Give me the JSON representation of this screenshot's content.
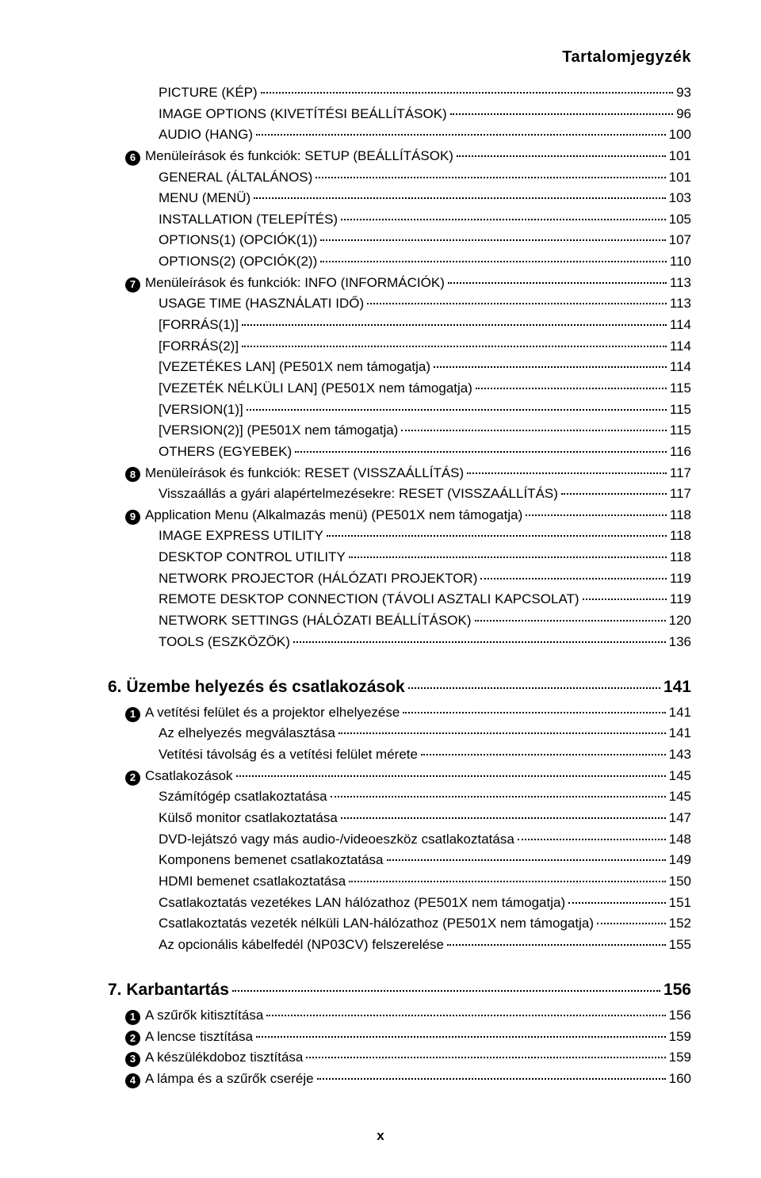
{
  "header": {
    "title": "Tartalomjegyzék"
  },
  "footer": {
    "page": "x"
  },
  "lines": [
    {
      "indent": 2,
      "label": "PICTURE (KÉP)",
      "page": "93"
    },
    {
      "indent": 2,
      "label": "IMAGE OPTIONS (KIVETÍTÉSI BEÁLLÍTÁSOK)",
      "page": "96"
    },
    {
      "indent": 2,
      "label": "AUDIO (HANG)",
      "page": "100"
    },
    {
      "indent": 1,
      "bullet": "6",
      "label": "Menüleírások és funkciók: SETUP (BEÁLLÍTÁSOK)",
      "page": "101"
    },
    {
      "indent": 2,
      "label": "GENERAL (ÁLTALÁNOS)",
      "page": "101"
    },
    {
      "indent": 2,
      "label": "MENU (MENÜ)",
      "page": "103"
    },
    {
      "indent": 2,
      "label": "INSTALLATION (TELEPÍTÉS)",
      "page": "105"
    },
    {
      "indent": 2,
      "label": "OPTIONS(1) (OPCIÓK(1))",
      "page": "107"
    },
    {
      "indent": 2,
      "label": "OPTIONS(2) (OPCIÓK(2))",
      "page": "110"
    },
    {
      "indent": 1,
      "bullet": "7",
      "label": "Menüleírások és funkciók: INFO (INFORMÁCIÓK)",
      "page": "113"
    },
    {
      "indent": 2,
      "label": "USAGE TIME (HASZNÁLATI IDŐ)",
      "page": "113"
    },
    {
      "indent": 2,
      "label": "[FORRÁS(1)]",
      "page": "114"
    },
    {
      "indent": 2,
      "label": "[FORRÁS(2)]",
      "page": "114"
    },
    {
      "indent": 2,
      "label": "[VEZETÉKES LAN] (PE501X nem támogatja)",
      "page": "114"
    },
    {
      "indent": 2,
      "label": "[VEZETÉK NÉLKÜLI LAN] (PE501X nem támogatja)",
      "page": "115"
    },
    {
      "indent": 2,
      "label": "[VERSION(1)]",
      "page": "115"
    },
    {
      "indent": 2,
      "label": "[VERSION(2)] (PE501X nem támogatja)",
      "page": "115"
    },
    {
      "indent": 2,
      "label": "OTHERS (EGYEBEK)",
      "page": "116"
    },
    {
      "indent": 1,
      "bullet": "8",
      "label": "Menüleírások és funkciók: RESET (VISSZAÁLLÍTÁS)",
      "page": "117"
    },
    {
      "indent": 2,
      "label": "Visszaállás a gyári alapértelmezésekre: RESET (VISSZAÁLLÍTÁS)",
      "page": "117"
    },
    {
      "indent": 1,
      "bullet": "9",
      "label": "Application Menu (Alkalmazás menü) (PE501X nem támogatja)",
      "page": "118"
    },
    {
      "indent": 2,
      "label": "IMAGE EXPRESS UTILITY",
      "page": "118"
    },
    {
      "indent": 2,
      "label": "DESKTOP CONTROL UTILITY",
      "page": "118"
    },
    {
      "indent": 2,
      "label": "NETWORK PROJECTOR (HÁLÓZATI PROJEKTOR)",
      "page": "119"
    },
    {
      "indent": 2,
      "label": "REMOTE DESKTOP CONNECTION (TÁVOLI ASZTALI KAPCSOLAT)",
      "page": "119"
    },
    {
      "indent": 2,
      "label": "NETWORK SETTINGS (HÁLÓZATI BEÁLLÍTÁSOK)",
      "page": "120"
    },
    {
      "indent": 2,
      "label": "TOOLS (ESZKÖZÖK)",
      "page": "136"
    },
    {
      "chapter": true,
      "indent": 0,
      "label": "6. Üzembe helyezés és csatlakozások",
      "page": "141"
    },
    {
      "indent": 1,
      "bullet": "1",
      "label": "A vetítési felület és a projektor elhelyezése",
      "page": "141"
    },
    {
      "indent": 2,
      "label": "Az elhelyezés megválasztása",
      "page": "141"
    },
    {
      "indent": 2,
      "label": "Vetítési távolság és a vetítési felület mérete",
      "page": "143"
    },
    {
      "indent": 1,
      "bullet": "2",
      "label": "Csatlakozások",
      "page": "145"
    },
    {
      "indent": 2,
      "label": "Számítógép csatlakoztatása",
      "page": "145"
    },
    {
      "indent": 2,
      "label": "Külső monitor csatlakoztatása",
      "page": "147"
    },
    {
      "indent": 2,
      "label": "DVD-lejátszó vagy más audio-/videoeszköz csatlakoztatása",
      "page": "148"
    },
    {
      "indent": 2,
      "label": "Komponens bemenet csatlakoztatása",
      "page": "149"
    },
    {
      "indent": 2,
      "label": "HDMI bemenet csatlakoztatása",
      "page": "150"
    },
    {
      "indent": 2,
      "label": "Csatlakoztatás vezetékes LAN hálózathoz (PE501X nem támogatja)",
      "page": "151"
    },
    {
      "indent": 2,
      "label": "Csatlakoztatás vezeték nélküli LAN-hálózathoz (PE501X nem támogatja)",
      "page": "152"
    },
    {
      "indent": 2,
      "label": "Az opcionális kábelfedél (NP03CV) felszerelése",
      "page": "155"
    },
    {
      "chapter": true,
      "indent": 0,
      "label": "7. Karbantartás",
      "page": "156"
    },
    {
      "indent": 1,
      "bullet": "1",
      "label": "A szűrők kitisztítása",
      "page": "156"
    },
    {
      "indent": 1,
      "bullet": "2",
      "label": "A lencse tisztítása",
      "page": "159"
    },
    {
      "indent": 1,
      "bullet": "3",
      "label": "A készülékdoboz tisztítása",
      "page": "159"
    },
    {
      "indent": 1,
      "bullet": "4",
      "label": "A lámpa és a szűrők cseréje",
      "page": "160"
    }
  ]
}
